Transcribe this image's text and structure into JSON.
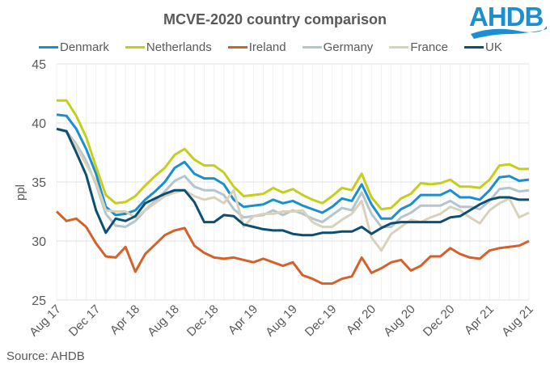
{
  "title": "MCVE-2020 country comparison",
  "logo_text": "AHDB",
  "source": "Source: AHDB",
  "chart_data": {
    "type": "line",
    "title": "MCVE-2020 country comparison",
    "xlabel": "",
    "ylabel": "ppl",
    "ylim": [
      25,
      45
    ],
    "yticks": [
      25,
      30,
      35,
      40,
      45
    ],
    "xtick_labels": [
      "Aug 17",
      "Dec 17",
      "Apr 18",
      "Aug 18",
      "Dec 18",
      "Apr 19",
      "Aug 19",
      "Dec 19",
      "Apr 20",
      "Aug 20",
      "Dec 20",
      "Apr 21",
      "Aug 21"
    ],
    "x_start": "Aug 17",
    "x_end": "Aug 21",
    "x_frequency": "monthly",
    "grid": true,
    "legend_position": "top",
    "series": [
      {
        "name": "Denmark",
        "color": "#1b8ecf",
        "values": [
          40.7,
          40.6,
          39.5,
          37.8,
          35.7,
          32.9,
          32.2,
          32.3,
          32.6,
          33.5,
          34.2,
          35.0,
          36.2,
          36.7,
          35.7,
          35.3,
          35.3,
          34.8,
          33.5,
          32.9,
          33.0,
          33.1,
          33.5,
          33.2,
          33.4,
          33.0,
          32.7,
          32.4,
          32.9,
          33.6,
          33.4,
          34.8,
          33.1,
          31.9,
          31.9,
          32.7,
          33.1,
          33.9,
          33.9,
          33.9,
          34.3,
          33.7,
          33.7,
          33.5,
          34.3,
          35.4,
          35.5,
          35.1,
          35.2
        ]
      },
      {
        "name": "Netherlands",
        "color": "#c4cf1c",
        "values": [
          41.9,
          41.9,
          40.6,
          38.8,
          36.3,
          33.9,
          33.2,
          33.3,
          33.8,
          34.7,
          35.5,
          36.2,
          37.3,
          37.8,
          36.9,
          36.4,
          36.4,
          35.8,
          34.6,
          33.8,
          33.9,
          34.0,
          34.5,
          34.1,
          34.4,
          33.9,
          33.5,
          33.2,
          33.8,
          34.5,
          34.3,
          35.7,
          33.7,
          32.7,
          32.8,
          33.6,
          34.0,
          34.9,
          34.8,
          34.9,
          35.2,
          34.6,
          34.6,
          34.5,
          35.2,
          36.4,
          36.5,
          36.1,
          36.1
        ]
      },
      {
        "name": "Ireland",
        "color": "#d4612a",
        "values": [
          32.5,
          31.7,
          31.9,
          31.2,
          29.8,
          28.7,
          28.6,
          29.5,
          27.4,
          28.9,
          29.7,
          30.5,
          30.9,
          31.1,
          29.6,
          29.0,
          28.6,
          28.5,
          28.6,
          28.4,
          28.2,
          28.5,
          28.2,
          27.9,
          28.2,
          27.1,
          26.8,
          26.4,
          26.4,
          26.8,
          27.0,
          28.6,
          27.3,
          27.7,
          28.2,
          28.4,
          27.5,
          27.9,
          28.7,
          28.7,
          29.4,
          28.9,
          28.6,
          28.5,
          29.2,
          29.4,
          29.5,
          29.6,
          30.0
        ]
      },
      {
        "name": "Germany",
        "color": "#b4c5ce",
        "values": [
          39.5,
          39.3,
          38.2,
          36.8,
          34.8,
          32.3,
          31.3,
          31.2,
          31.7,
          32.6,
          33.4,
          34.2,
          35.1,
          35.5,
          34.6,
          34.3,
          34.3,
          33.9,
          32.7,
          32.0,
          32.1,
          32.2,
          32.6,
          32.2,
          32.6,
          32.3,
          31.9,
          31.6,
          32.2,
          32.8,
          32.6,
          34.1,
          32.3,
          31.2,
          31.2,
          32.0,
          32.4,
          33.0,
          33.0,
          33.0,
          33.4,
          32.9,
          32.9,
          32.7,
          33.4,
          34.4,
          34.5,
          34.2,
          34.3
        ]
      },
      {
        "name": "France",
        "color": "#d9d2ba",
        "values": [
          39.5,
          39.2,
          38.0,
          36.5,
          35.0,
          32.6,
          32.5,
          32.5,
          32.0,
          32.6,
          33.2,
          33.8,
          34.1,
          34.3,
          33.8,
          33.5,
          33.7,
          33.2,
          34.3,
          31.2,
          32.1,
          32.3,
          32.3,
          32.5,
          32.5,
          32.6,
          31.6,
          31.2,
          31.2,
          31.8,
          32.3,
          33.4,
          30.3,
          29.2,
          30.6,
          31.2,
          31.8,
          31.6,
          32.0,
          32.3,
          32.9,
          32.6,
          32.0,
          31.5,
          32.6,
          33.2,
          33.6,
          32.0,
          32.4
        ]
      },
      {
        "name": "UK",
        "color": "#0d4f72",
        "values": [
          39.5,
          39.3,
          37.5,
          35.6,
          32.6,
          30.7,
          31.9,
          31.7,
          32.1,
          33.2,
          33.6,
          34.0,
          34.3,
          34.3,
          33.3,
          31.6,
          31.6,
          32.2,
          32.1,
          31.4,
          31.2,
          31.0,
          30.9,
          30.9,
          30.6,
          30.5,
          30.5,
          30.7,
          30.7,
          30.8,
          30.8,
          31.2,
          30.6,
          31.1,
          31.5,
          31.6,
          31.6,
          31.6,
          31.6,
          31.6,
          32.0,
          32.1,
          32.6,
          33.1,
          33.5,
          33.7,
          33.7,
          33.5,
          33.5
        ]
      }
    ]
  }
}
